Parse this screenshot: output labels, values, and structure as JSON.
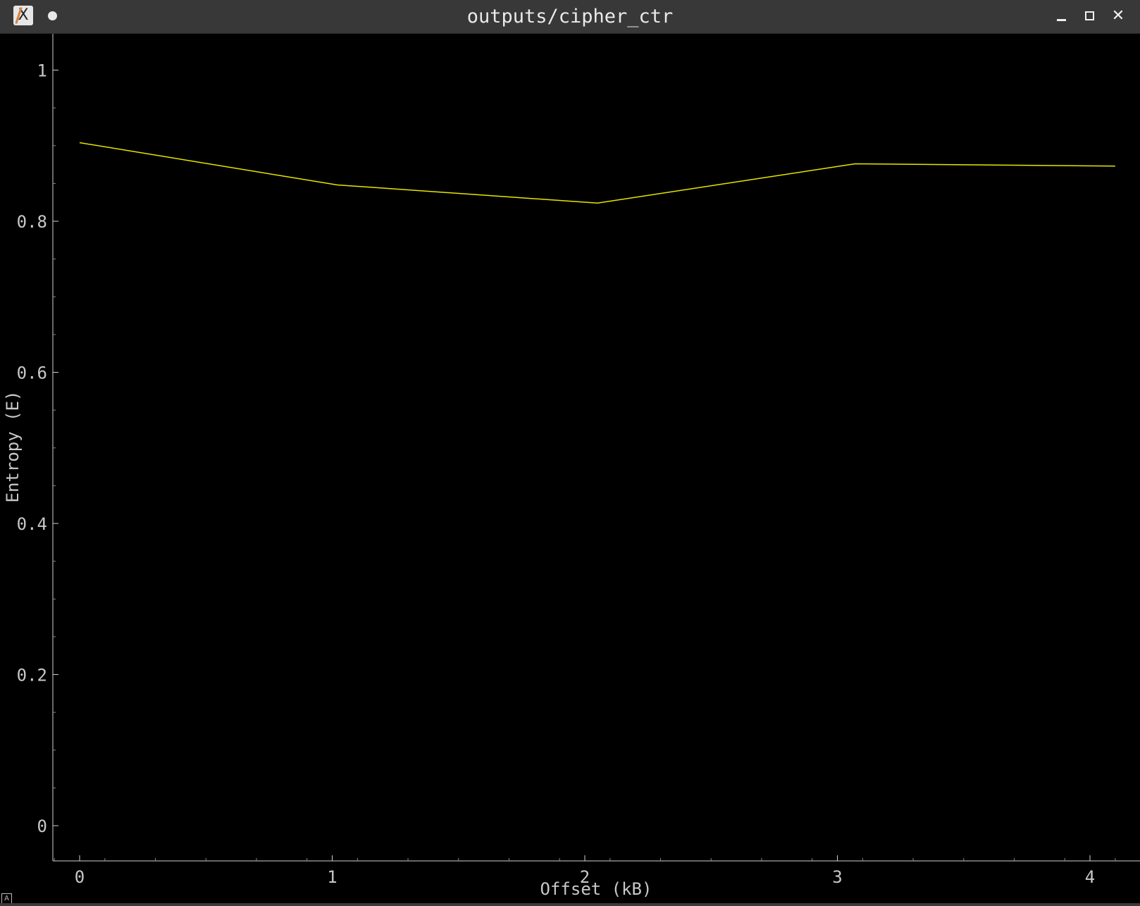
{
  "window": {
    "title": "outputs/cipher_ctr",
    "icons": {
      "app": "x-app-icon",
      "status": "dot-indicator-icon",
      "minimize": "minimize-icon",
      "maximize": "maximize-icon",
      "close": "close-icon"
    },
    "close_glyph": "✕",
    "corner_glyph": "A"
  },
  "chart_data": {
    "type": "line",
    "title": "",
    "xlabel": "Offset (kB)",
    "ylabel": "Entropy (E)",
    "xlim": [
      -0.1,
      4.2
    ],
    "ylim": [
      -0.05,
      1.05
    ],
    "xticks": [
      0,
      1,
      2,
      3,
      4
    ],
    "yticks": [
      0,
      0.2,
      0.4,
      0.6,
      0.8,
      1
    ],
    "ytick_labels": [
      "0",
      "0.2",
      "0.4",
      "0.6",
      "0.8",
      "1"
    ],
    "grid": false,
    "series": [
      {
        "color": "#e6e600",
        "x": [
          0,
          1.02,
          2.05,
          3.07,
          4.1
        ],
        "y": [
          0.904,
          0.848,
          0.824,
          0.876,
          0.873
        ]
      }
    ]
  }
}
